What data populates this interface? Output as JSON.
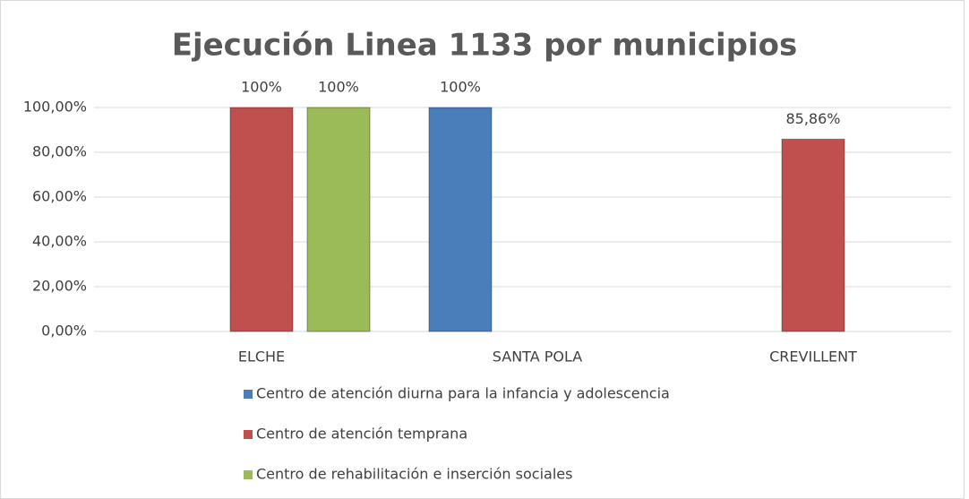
{
  "chart_data": {
    "type": "bar",
    "title": "Ejecución Linea 1133 por municipios",
    "categories": [
      "ELCHE",
      "SANTA POLA",
      "CREVILLENT"
    ],
    "series": [
      {
        "name": "Centro de atención diurna para la infancia y adolescencia",
        "color": "#4a7ebb",
        "values": [
          null,
          100,
          null
        ],
        "value_labels": [
          null,
          "100%",
          null
        ]
      },
      {
        "name": "Centro de atención temprana",
        "color": "#c0504d",
        "values": [
          100,
          null,
          85.86
        ],
        "value_labels": [
          "100%",
          null,
          "85,86%"
        ]
      },
      {
        "name": "Centro de rehabilitación e inserción sociales",
        "color": "#9bbb59",
        "values": [
          100,
          null,
          null
        ],
        "value_labels": [
          "100%",
          null,
          null
        ]
      }
    ],
    "ylim": [
      0,
      100
    ],
    "yticks": [
      {
        "value": 0,
        "label": "0,00%"
      },
      {
        "value": 20,
        "label": "20,00%"
      },
      {
        "value": 40,
        "label": "40,00%"
      },
      {
        "value": 60,
        "label": "60,00%"
      },
      {
        "value": 80,
        "label": "80,00%"
      },
      {
        "value": 100,
        "label": "100,00%"
      }
    ],
    "grid": true,
    "legend": "bottom"
  }
}
